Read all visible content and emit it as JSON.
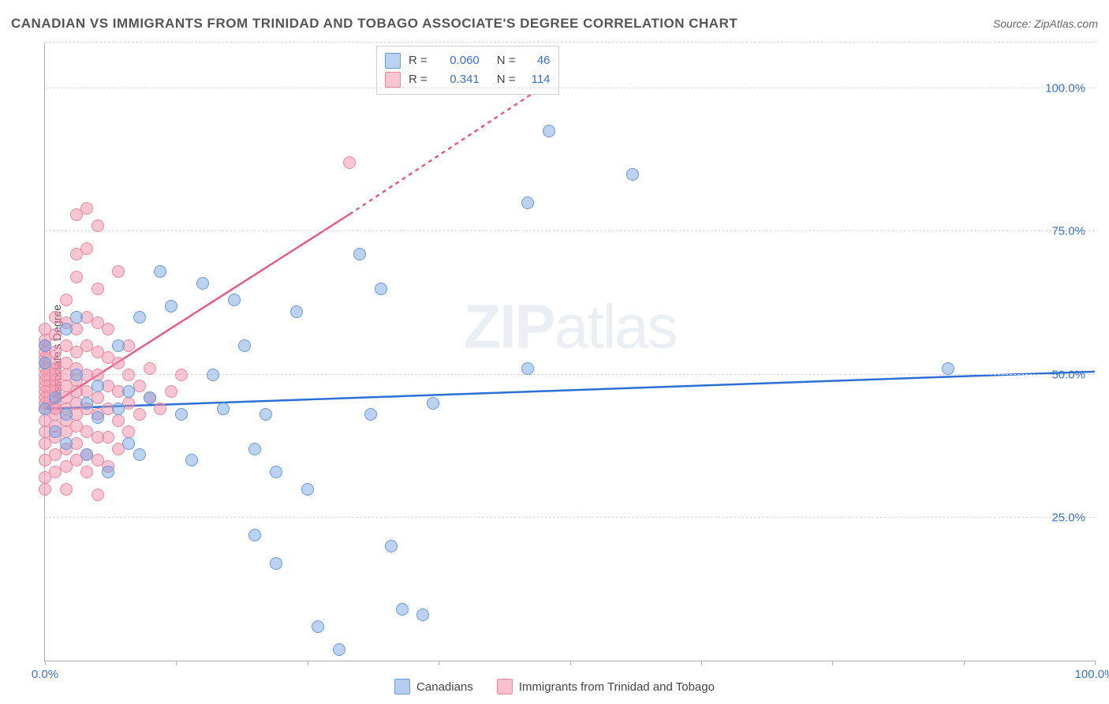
{
  "title": "CANADIAN VS IMMIGRANTS FROM TRINIDAD AND TOBAGO ASSOCIATE'S DEGREE CORRELATION CHART",
  "source": "Source: ZipAtlas.com",
  "y_axis_label": "Associate's Degree",
  "watermark_bold": "ZIP",
  "watermark_light": "atlas",
  "chart": {
    "type": "scatter",
    "xlim": [
      0,
      100
    ],
    "ylim": [
      0,
      108
    ],
    "x_ticks": [
      0,
      12.5,
      25,
      37.5,
      50,
      62.5,
      75,
      87.5,
      100
    ],
    "x_tick_labels": {
      "0": "0.0%",
      "100": "100.0%"
    },
    "y_gridlines": [
      25,
      50,
      75,
      100,
      108
    ],
    "y_tick_labels": {
      "25": "25.0%",
      "50": "50.0%",
      "75": "75.0%",
      "100": "100.0%"
    },
    "background_color": "#ffffff",
    "grid_color": "#d8d8d8",
    "axis_color": "#b0b0b0",
    "tick_label_color": "#3a72c9",
    "point_radius": 8,
    "point_opacity": 0.55,
    "series": [
      {
        "name": "Canadians",
        "color_fill": "rgba(120,165,225,0.5)",
        "color_stroke": "#6a9ad8",
        "trend": {
          "x1": 0,
          "y1": 44,
          "x2": 100,
          "y2": 50.5,
          "stroke": "#2d6fd4",
          "width": 2.5,
          "dash": ""
        },
        "r_value": "0.060",
        "n_value": "46",
        "points": [
          [
            0,
            44
          ],
          [
            0,
            52
          ],
          [
            0,
            55
          ],
          [
            1,
            40
          ],
          [
            1,
            46
          ],
          [
            2,
            58
          ],
          [
            2,
            38
          ],
          [
            2,
            43
          ],
          [
            3,
            50
          ],
          [
            3,
            60
          ],
          [
            4,
            45
          ],
          [
            4,
            36
          ],
          [
            5,
            42.5
          ],
          [
            5,
            48
          ],
          [
            6,
            33
          ],
          [
            7,
            44
          ],
          [
            7,
            55
          ],
          [
            8,
            38
          ],
          [
            8,
            47
          ],
          [
            9,
            60
          ],
          [
            9,
            36
          ],
          [
            10,
            46
          ],
          [
            11,
            68
          ],
          [
            12,
            62
          ],
          [
            13,
            43
          ],
          [
            14,
            35
          ],
          [
            15,
            66
          ],
          [
            16,
            50
          ],
          [
            17,
            44
          ],
          [
            18,
            63
          ],
          [
            19,
            55
          ],
          [
            20,
            37
          ],
          [
            20,
            22
          ],
          [
            21,
            43
          ],
          [
            22,
            17
          ],
          [
            22,
            33
          ],
          [
            24,
            61
          ],
          [
            25,
            30
          ],
          [
            26,
            6
          ],
          [
            28,
            2
          ],
          [
            30,
            71
          ],
          [
            31,
            43
          ],
          [
            32,
            65
          ],
          [
            33,
            20
          ],
          [
            34,
            9
          ],
          [
            36,
            8
          ],
          [
            37,
            45
          ],
          [
            46,
            80
          ],
          [
            46,
            51
          ],
          [
            48,
            92.5
          ],
          [
            56,
            85
          ],
          [
            86,
            51
          ]
        ]
      },
      {
        "name": "Immigrants from Trinidad and Tobago",
        "color_fill": "rgba(242,140,165,0.5)",
        "color_stroke": "#e88aa3",
        "trend": {
          "x1": 0,
          "y1": 44,
          "x2": 29,
          "y2": 78,
          "stroke": "#e75a8a",
          "width": 2.5,
          "dash": "",
          "dash_ext": {
            "x1": 29,
            "y1": 78,
            "x2": 48,
            "y2": 101,
            "dash": "5,5"
          }
        },
        "r_value": "0.341",
        "n_value": "114",
        "points": [
          [
            0,
            30
          ],
          [
            0,
            32
          ],
          [
            0,
            35
          ],
          [
            0,
            38
          ],
          [
            0,
            40
          ],
          [
            0,
            42
          ],
          [
            0,
            44
          ],
          [
            0,
            45
          ],
          [
            0,
            46
          ],
          [
            0,
            47
          ],
          [
            0,
            48
          ],
          [
            0,
            49
          ],
          [
            0,
            50
          ],
          [
            0,
            51
          ],
          [
            0,
            52
          ],
          [
            0,
            53
          ],
          [
            0,
            54
          ],
          [
            0,
            55
          ],
          [
            0,
            56
          ],
          [
            0,
            58
          ],
          [
            1,
            33
          ],
          [
            1,
            36
          ],
          [
            1,
            39
          ],
          [
            1,
            41
          ],
          [
            1,
            43
          ],
          [
            1,
            44
          ],
          [
            1,
            45
          ],
          [
            1,
            46
          ],
          [
            1,
            47
          ],
          [
            1,
            48
          ],
          [
            1,
            49
          ],
          [
            1,
            50
          ],
          [
            1,
            51
          ],
          [
            1,
            52
          ],
          [
            1,
            54
          ],
          [
            1,
            57
          ],
          [
            1,
            60
          ],
          [
            2,
            30
          ],
          [
            2,
            34
          ],
          [
            2,
            37
          ],
          [
            2,
            40
          ],
          [
            2,
            42
          ],
          [
            2,
            44
          ],
          [
            2,
            46
          ],
          [
            2,
            48
          ],
          [
            2,
            50
          ],
          [
            2,
            52
          ],
          [
            2,
            55
          ],
          [
            2,
            59
          ],
          [
            2,
            63
          ],
          [
            3,
            35
          ],
          [
            3,
            38
          ],
          [
            3,
            41
          ],
          [
            3,
            43
          ],
          [
            3,
            45
          ],
          [
            3,
            47
          ],
          [
            3,
            49
          ],
          [
            3,
            51
          ],
          [
            3,
            54
          ],
          [
            3,
            58
          ],
          [
            3,
            67
          ],
          [
            3,
            71
          ],
          [
            3,
            78
          ],
          [
            4,
            33
          ],
          [
            4,
            36
          ],
          [
            4,
            40
          ],
          [
            4,
            44
          ],
          [
            4,
            47
          ],
          [
            4,
            50
          ],
          [
            4,
            55
          ],
          [
            4,
            60
          ],
          [
            4,
            72
          ],
          [
            4,
            79
          ],
          [
            5,
            29
          ],
          [
            5,
            35
          ],
          [
            5,
            39
          ],
          [
            5,
            43
          ],
          [
            5,
            46
          ],
          [
            5,
            50
          ],
          [
            5,
            54
          ],
          [
            5,
            59
          ],
          [
            5,
            65
          ],
          [
            5,
            76
          ],
          [
            6,
            34
          ],
          [
            6,
            39
          ],
          [
            6,
            44
          ],
          [
            6,
            48
          ],
          [
            6,
            53
          ],
          [
            6,
            58
          ],
          [
            7,
            37
          ],
          [
            7,
            42
          ],
          [
            7,
            47
          ],
          [
            7,
            52
          ],
          [
            7,
            68
          ],
          [
            8,
            40
          ],
          [
            8,
            45
          ],
          [
            8,
            50
          ],
          [
            8,
            55
          ],
          [
            9,
            43
          ],
          [
            9,
            48
          ],
          [
            10,
            46
          ],
          [
            10,
            51
          ],
          [
            11,
            44
          ],
          [
            12,
            47
          ],
          [
            13,
            50
          ],
          [
            29,
            87
          ]
        ]
      }
    ]
  },
  "legend_box": {
    "labels": {
      "R": "R =",
      "N": "N ="
    }
  },
  "bottom_legend": {
    "swatch_blue_fill": "rgba(120,165,225,0.55)",
    "swatch_blue_stroke": "#6a9ad8",
    "swatch_pink_fill": "rgba(242,140,165,0.55)",
    "swatch_pink_stroke": "#e88aa3"
  }
}
